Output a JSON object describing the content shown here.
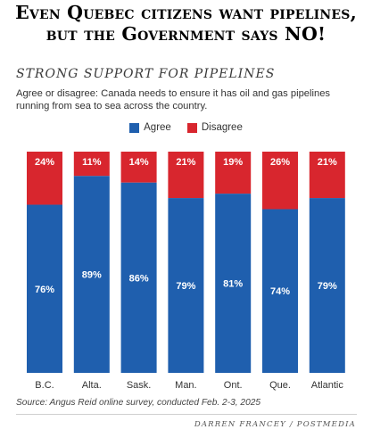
{
  "headline": "Even Quebec citizens want pipelines, but the Government says NO!",
  "chart_data": {
    "type": "bar",
    "stacked": true,
    "title": "STRONG SUPPORT FOR PIPELINES",
    "question": "Agree or disagree: Canada needs to ensure it has oil and gas pipelines running from sea to sea across the country.",
    "categories": [
      "B.C.",
      "Alta.",
      "Sask.",
      "Man.",
      "Ont.",
      "Que.",
      "Atlantic"
    ],
    "series": [
      {
        "name": "Agree",
        "color": "#1f5fae",
        "values": [
          76,
          89,
          86,
          79,
          81,
          74,
          79
        ]
      },
      {
        "name": "Disagree",
        "color": "#d8262e",
        "values": [
          24,
          11,
          14,
          21,
          19,
          26,
          21
        ]
      }
    ],
    "value_suffix": "%",
    "ylim": [
      0,
      100
    ],
    "grid": false,
    "legend_position": "top-center"
  },
  "source": "Source: Angus Reid online survey, conducted Feb. 2-3, 2025",
  "credit": "DARREN FRANCEY / POSTMEDIA"
}
